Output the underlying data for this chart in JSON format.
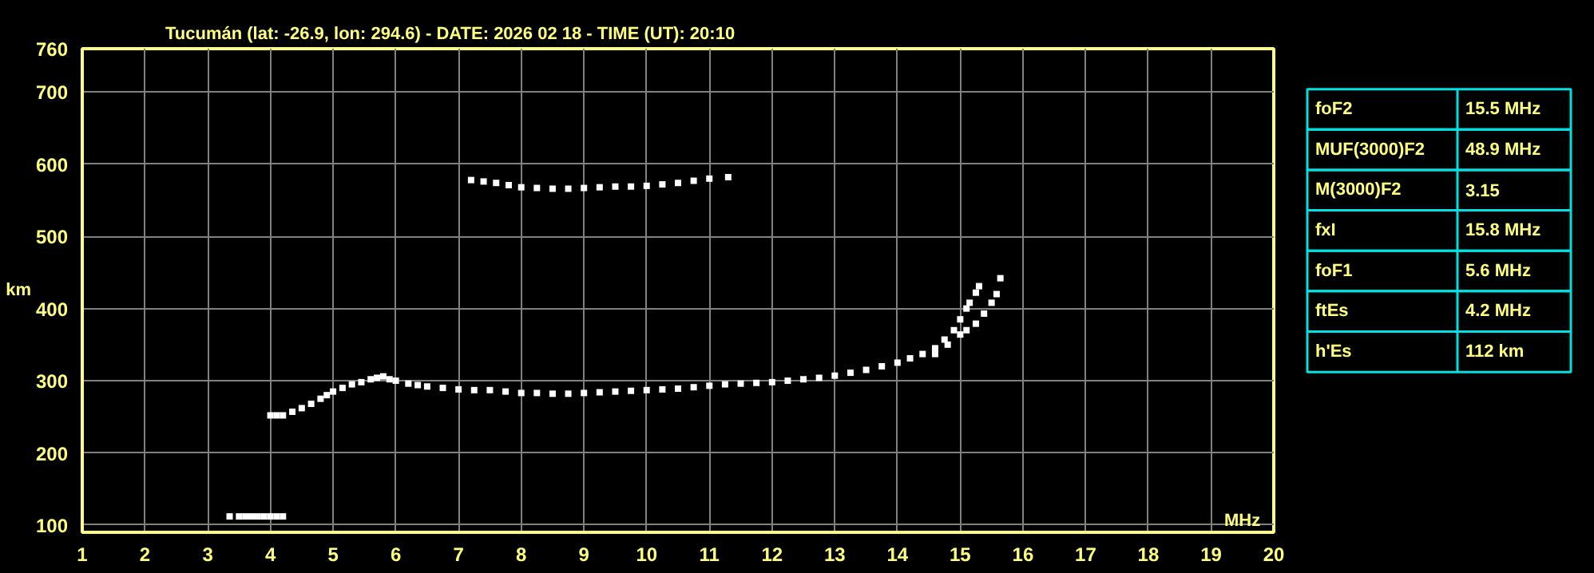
{
  "chart_data": [
    {
      "type": "scatter",
      "title": "Tucumán (lat: -26.9, lon: 294.6) - DATE: 2026 02 18 - TIME (UT): 20:10",
      "xlabel": "MHz",
      "ylabel": "km",
      "marker": "square",
      "grid": true,
      "xlim": [
        1,
        20
      ],
      "ylim": [
        90,
        760
      ],
      "xticks": [
        1,
        2,
        3,
        4,
        5,
        6,
        7,
        8,
        9,
        10,
        11,
        12,
        13,
        14,
        15,
        16,
        17,
        18,
        19,
        20
      ],
      "yticks": [
        100,
        200,
        300,
        400,
        500,
        600,
        700,
        760
      ],
      "series": [
        {
          "color": "#ffffff",
          "x": [
            3.35,
            3.5,
            3.6,
            3.7,
            3.8,
            3.9,
            4.0,
            4.1,
            4.2
          ],
          "values": [
            112,
            112,
            112,
            112,
            112,
            112,
            112,
            112,
            112
          ]
        },
        {
          "color": "#ffffff",
          "x": [
            4.0,
            4.1,
            4.2,
            4.35,
            4.5,
            4.65,
            4.8,
            4.9,
            5.0,
            5.15,
            5.3,
            5.45,
            5.6,
            5.7,
            5.8
          ],
          "values": [
            252,
            252,
            252,
            257,
            262,
            268,
            275,
            280,
            285,
            290,
            295,
            298,
            302,
            304,
            306
          ]
        },
        {
          "color": "#ffffff",
          "x": [
            5.9,
            6.0,
            6.2,
            6.35,
            6.5,
            6.75,
            7.0,
            7.25,
            7.5,
            7.75,
            8.0,
            8.25,
            8.5,
            8.75,
            9.0,
            9.25,
            9.5,
            9.75,
            10.0,
            10.25,
            10.5,
            10.75,
            11.0,
            11.25,
            11.5,
            11.75,
            12.0,
            12.25,
            12.5,
            12.75,
            13.0,
            13.25,
            13.5,
            13.75,
            14.0,
            14.2,
            14.4,
            14.6,
            14.75,
            14.9,
            15.0,
            15.1,
            15.15,
            15.25,
            15.3
          ],
          "values": [
            302,
            300,
            296,
            294,
            292,
            290,
            288,
            287,
            287,
            285,
            283,
            283,
            282,
            282,
            283,
            284,
            285,
            286,
            287,
            288,
            289,
            291,
            293,
            295,
            296,
            297,
            298,
            300,
            302,
            304,
            307,
            311,
            315,
            320,
            325,
            331,
            337,
            345,
            357,
            370,
            385,
            400,
            408,
            422,
            431
          ]
        },
        {
          "color": "#ffffff",
          "x": [
            14.6,
            14.8,
            15.0,
            15.1,
            15.25,
            15.38,
            15.5,
            15.58,
            15.64
          ],
          "values": [
            337,
            350,
            364,
            370,
            379,
            393,
            408,
            420,
            442
          ]
        },
        {
          "color": "#ffffff",
          "x": [
            7.2,
            7.4,
            7.6,
            7.8,
            8.0,
            8.25,
            8.5,
            8.75,
            9.0,
            9.25,
            9.5,
            9.75,
            10.0,
            10.25,
            10.5,
            10.75,
            11.0,
            11.3
          ],
          "values": [
            578,
            576,
            574,
            571,
            568,
            567,
            566,
            566,
            567,
            568,
            569,
            569,
            570,
            572,
            574,
            577,
            580,
            582
          ]
        }
      ]
    },
    {
      "type": "other",
      "y_categories": [
        "foF2",
        "MUF(3000)F2",
        "M(3000)F2",
        "fxI",
        "foF1",
        "ftEs",
        "h'Es"
      ],
      "cell_labels": [
        [
          "15.5 MHz"
        ],
        [
          "48.9 MHz"
        ],
        [
          "3.15"
        ],
        [
          "15.8 MHz"
        ],
        [
          "5.6 MHz"
        ],
        [
          "4.2 MHz"
        ],
        [
          "112 km"
        ]
      ]
    }
  ]
}
